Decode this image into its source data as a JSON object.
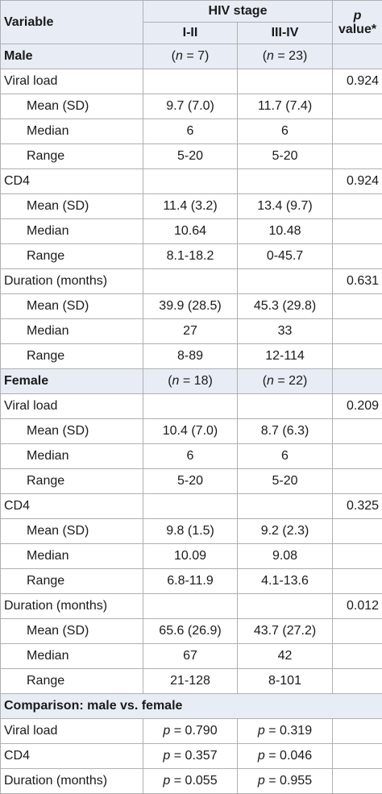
{
  "header": {
    "variable": "Variable",
    "hiv_stage": "HIV stage",
    "stage_1": "I-II",
    "stage_2": "III-IV",
    "p_symbol": "p",
    "p_value": "value*"
  },
  "groups": [
    {
      "name": "Male",
      "n1": "7",
      "n2": "23",
      "blocks": [
        {
          "label": "Viral load",
          "p": "0.924",
          "rows": [
            {
              "label": "Mean (SD)",
              "v1": "9.7 (7.0)",
              "v2": "11.7 (7.4)"
            },
            {
              "label": "Median",
              "v1": "6",
              "v2": "6"
            },
            {
              "label": "Range",
              "v1": "5-20",
              "v2": "5-20"
            }
          ]
        },
        {
          "label": "CD4",
          "p": "0.924",
          "rows": [
            {
              "label": "Mean (SD)",
              "v1": "11.4 (3.2)",
              "v2": "13.4 (9.7)"
            },
            {
              "label": "Median",
              "v1": "10.64",
              "v2": "10.48"
            },
            {
              "label": "Range",
              "v1": "8.1-18.2",
              "v2": "0-45.7"
            }
          ]
        },
        {
          "label": "Duration (months)",
          "p": "0.631",
          "rows": [
            {
              "label": "Mean (SD)",
              "v1": "39.9 (28.5)",
              "v2": "45.3 (29.8)"
            },
            {
              "label": "Median",
              "v1": "27",
              "v2": "33"
            },
            {
              "label": "Range",
              "v1": "8-89",
              "v2": "12-114"
            }
          ]
        }
      ]
    },
    {
      "name": "Female",
      "n1": "18",
      "n2": "22",
      "blocks": [
        {
          "label": "Viral load",
          "p": "0.209",
          "rows": [
            {
              "label": "Mean (SD)",
              "v1": "10.4 (7.0)",
              "v2": "8.7 (6.3)"
            },
            {
              "label": "Median",
              "v1": "6",
              "v2": "6"
            },
            {
              "label": "Range",
              "v1": "5-20",
              "v2": "5-20"
            }
          ]
        },
        {
          "label": "CD4",
          "p": "0.325",
          "rows": [
            {
              "label": "Mean (SD)",
              "v1": "9.8 (1.5)",
              "v2": "9.2 (2.3)"
            },
            {
              "label": "Median",
              "v1": "10.09",
              "v2": "9.08"
            },
            {
              "label": "Range",
              "v1": "6.8-11.9",
              "v2": "4.1-13.6"
            }
          ]
        },
        {
          "label": "Duration (months)",
          "p": "0.012",
          "rows": [
            {
              "label": "Mean (SD)",
              "v1": "65.6 (26.9)",
              "v2": "43.7 (27.2)"
            },
            {
              "label": "Median",
              "v1": "67",
              "v2": "42"
            },
            {
              "label": "Range",
              "v1": "21-128",
              "v2": "8-101"
            }
          ]
        }
      ]
    }
  ],
  "comparison": {
    "title": "Comparison: male vs. female",
    "rows": [
      {
        "label": "Viral load",
        "p1": "0.790",
        "p2": "0.319"
      },
      {
        "label": "CD4",
        "p1": "0.357",
        "p2": "0.046"
      },
      {
        "label": "Duration (months)",
        "p1": "0.055",
        "p2": "0.955"
      }
    ]
  }
}
